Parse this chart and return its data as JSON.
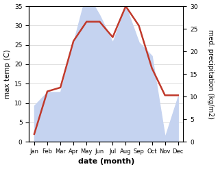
{
  "months": [
    "Jan",
    "Feb",
    "Mar",
    "Apr",
    "May",
    "Jun",
    "Jul",
    "Aug",
    "Sep",
    "Oct",
    "Nov",
    "Dec"
  ],
  "temp": [
    2,
    13,
    14,
    26,
    31,
    31,
    27,
    35,
    30,
    19,
    12,
    12
  ],
  "precip": [
    8,
    11,
    11,
    22,
    33,
    28,
    22,
    30,
    22,
    19,
    1,
    10
  ],
  "temp_color": "#c0392b",
  "precip_color_fill": "#c5d3f0",
  "ylabel_left": "max temp (C)",
  "ylabel_right": "med. precipitation (kg/m2)",
  "xlabel": "date (month)",
  "ylim_left": [
    0,
    35
  ],
  "ylim_right": [
    0,
    30
  ],
  "yticks_left": [
    0,
    5,
    10,
    15,
    20,
    25,
    30,
    35
  ],
  "yticks_right": [
    0,
    5,
    10,
    15,
    20,
    25,
    30
  ],
  "bg_color": "#ffffff",
  "grid_color": "#d0d0d0",
  "figsize": [
    3.18,
    2.47
  ],
  "dpi": 100
}
